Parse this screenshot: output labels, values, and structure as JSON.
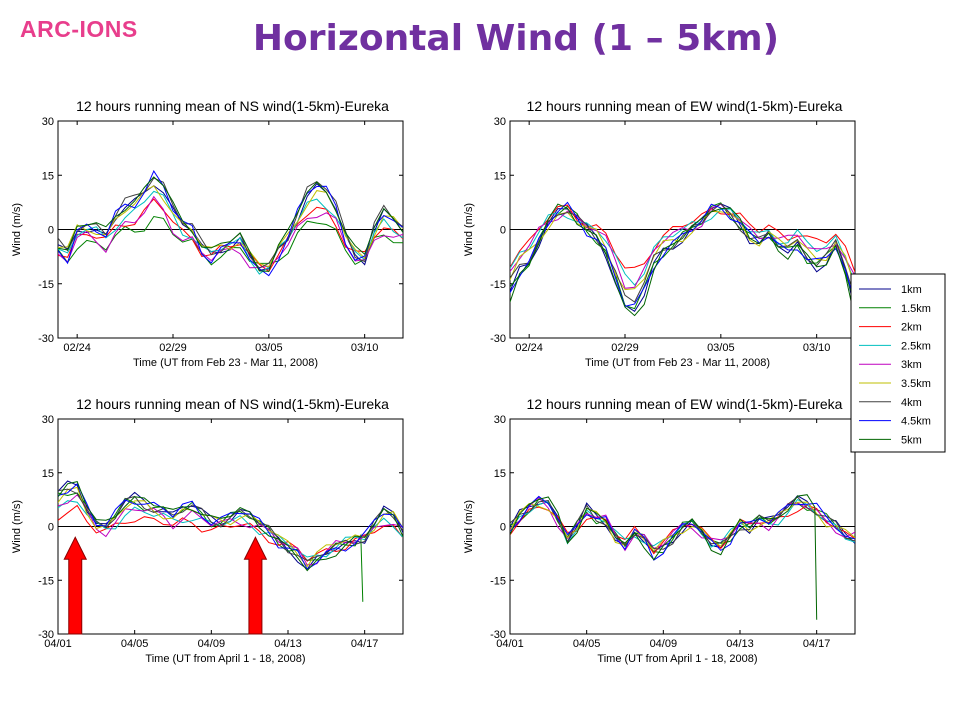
{
  "header": {
    "logo": "ARC-IONS",
    "title": "Horizontal Wind (1 – 5km)"
  },
  "colors": {
    "title": "#7030a0",
    "logo": "#e83e8c",
    "arrow": "#ff0000"
  },
  "legend": {
    "entries": [
      "1km",
      "1.5km",
      "2km",
      "2.5km",
      "3km",
      "3.5km",
      "4km",
      "4.5km",
      "5km"
    ],
    "colors": [
      "#00008b",
      "#008000",
      "#ff0000",
      "#00bfbf",
      "#bf00bf",
      "#bfbf00",
      "#404040",
      "#0000ff",
      "#006400"
    ]
  },
  "chart_data": [
    {
      "type": "line",
      "title": "12 hours running mean of NS wind(1-5km)-Eureka",
      "xlabel": "Time (UT from Feb 23 - Mar 11, 2008)",
      "ylabel": "Wind (m/s)",
      "xlim": [
        0,
        18
      ],
      "ylim": [
        -30,
        30
      ],
      "yticks": [
        30,
        15,
        0,
        -15,
        -30
      ],
      "xticks": [
        {
          "x": 1,
          "label": "02/24"
        },
        {
          "x": 6,
          "label": "02/29"
        },
        {
          "x": 11,
          "label": "03/05"
        },
        {
          "x": 16,
          "label": "03/10"
        }
      ],
      "grid": false,
      "legend_position": "right",
      "base": {
        "x": [
          0,
          0.5,
          1,
          1.5,
          2,
          2.5,
          3,
          3.5,
          4,
          4.5,
          5,
          5.5,
          6,
          6.5,
          7,
          7.5,
          8,
          8.5,
          9,
          9.5,
          10,
          10.5,
          11,
          11.5,
          12,
          12.5,
          13,
          13.5,
          14,
          14.5,
          15,
          15.5,
          16,
          16.5,
          17,
          17.5,
          18
        ],
        "y": [
          -5,
          -7,
          0,
          1,
          0,
          -2,
          3,
          6,
          7,
          10,
          14,
          11,
          5,
          1,
          0,
          -5,
          -7,
          -5,
          -4,
          -3,
          -8,
          -11,
          -11,
          -6,
          -2,
          4,
          9,
          11,
          10,
          6,
          -2,
          -7,
          -8,
          0,
          4,
          2,
          0
        ]
      },
      "amplitudes": [
        1.0,
        0.55,
        0.7,
        0.85,
        0.75,
        0.9,
        1.05,
        1.1,
        1.0
      ],
      "offsets": [
        0,
        -4,
        -2,
        -1,
        -3,
        0,
        1,
        0,
        1
      ]
    },
    {
      "type": "line",
      "title": "12 hours running mean of EW wind(1-5km)-Eureka",
      "xlabel": "Time (UT from Feb 23 - Mar 11, 2008)",
      "ylabel": "Wind (m/s)",
      "xlim": [
        0,
        18
      ],
      "ylim": [
        -30,
        30
      ],
      "yticks": [
        30,
        15,
        0,
        -15,
        -30
      ],
      "xticks": [
        {
          "x": 1,
          "label": "02/24"
        },
        {
          "x": 6,
          "label": "02/29"
        },
        {
          "x": 11,
          "label": "03/05"
        },
        {
          "x": 16,
          "label": "03/10"
        }
      ],
      "grid": false,
      "base": {
        "x": [
          0,
          0.5,
          1,
          1.5,
          2,
          2.5,
          3,
          3.5,
          4,
          4.5,
          5,
          5.5,
          6,
          6.5,
          7,
          7.5,
          8,
          8.5,
          9,
          9.5,
          10,
          10.5,
          11,
          11.5,
          12,
          12.5,
          13,
          13.5,
          14,
          14.5,
          15,
          15.5,
          16,
          16.5,
          17,
          17.5,
          18
        ],
        "y": [
          -18,
          -12,
          -9,
          -3,
          2,
          5,
          6,
          3,
          0,
          -2,
          -6,
          -14,
          -22,
          -23,
          -18,
          -10,
          -6,
          -4,
          -2,
          0,
          2,
          6,
          7,
          5,
          2,
          -2,
          -4,
          -2,
          -5,
          -6,
          -4,
          -8,
          -10,
          -9,
          -5,
          -12,
          -22
        ]
      },
      "amplitudes": [
        1.0,
        0.95,
        0.6,
        0.65,
        0.7,
        0.75,
        0.85,
        0.95,
        1.05
      ],
      "offsets": [
        0,
        0,
        2,
        1,
        1,
        0,
        0,
        0,
        0
      ]
    },
    {
      "type": "line",
      "title": "12 hours running mean of NS wind(1-5km)-Eureka",
      "xlabel": "Time (UT from April 1 - 18, 2008)",
      "ylabel": "Wind (m/s)",
      "xlim": [
        0,
        18
      ],
      "ylim": [
        -30,
        30
      ],
      "yticks": [
        30,
        15,
        0,
        -15,
        -30
      ],
      "xticks": [
        {
          "x": 0,
          "label": "04/01"
        },
        {
          "x": 4,
          "label": "04/05"
        },
        {
          "x": 8,
          "label": "04/09"
        },
        {
          "x": 12,
          "label": "04/13"
        },
        {
          "x": 16,
          "label": "04/17"
        }
      ],
      "grid": false,
      "base": {
        "x": [
          0,
          0.5,
          1,
          1.5,
          2,
          2.5,
          3,
          3.5,
          4,
          4.5,
          5,
          5.5,
          6,
          6.5,
          7,
          7.5,
          8,
          8.5,
          9,
          9.5,
          10,
          10.5,
          11,
          11.5,
          12,
          12.5,
          13,
          13.5,
          14,
          14.5,
          15,
          15.5,
          16,
          16.5,
          17,
          17.5,
          18
        ],
        "y": [
          9,
          11,
          12,
          6,
          1,
          0,
          3,
          7,
          8,
          7,
          6,
          5,
          3,
          5,
          6,
          4,
          2,
          2,
          3,
          4,
          3,
          1,
          -1,
          -4,
          -6,
          -8,
          -12,
          -10,
          -8,
          -6,
          -5,
          -4,
          -3,
          1,
          4,
          3,
          -1
        ]
      },
      "amplitudes": [
        1.0,
        0.9,
        0.6,
        0.7,
        0.75,
        0.8,
        0.9,
        1.0,
        1.05
      ],
      "offsets": [
        0,
        0,
        -2,
        -1,
        -1,
        0,
        0,
        0,
        0
      ],
      "spike": {
        "series": 1,
        "x": 15.9,
        "y": -21
      },
      "arrows": [
        {
          "x": 0.9,
          "from_y": -30,
          "to_y": -3
        },
        {
          "x": 10.3,
          "from_y": -30,
          "to_y": -3
        }
      ]
    },
    {
      "type": "line",
      "title": "12 hours running mean of EW wind(1-5km)-Eureka",
      "xlabel": "Time (UT from April 1 - 18, 2008)",
      "ylabel": "Wind (m/s)",
      "xlim": [
        0,
        18
      ],
      "ylim": [
        -30,
        30
      ],
      "yticks": [
        30,
        15,
        0,
        -15,
        -30
      ],
      "xticks": [
        {
          "x": 0,
          "label": "04/01"
        },
        {
          "x": 4,
          "label": "04/05"
        },
        {
          "x": 8,
          "label": "04/09"
        },
        {
          "x": 12,
          "label": "04/13"
        },
        {
          "x": 16,
          "label": "04/17"
        }
      ],
      "grid": false,
      "base": {
        "x": [
          0,
          0.5,
          1,
          1.5,
          2,
          2.5,
          3,
          3.5,
          4,
          4.5,
          5,
          5.5,
          6,
          6.5,
          7,
          7.5,
          8,
          8.5,
          9,
          9.5,
          10,
          10.5,
          11,
          11.5,
          12,
          12.5,
          13,
          13.5,
          14,
          14.5,
          15,
          15.5,
          16,
          16.5,
          17,
          17.5,
          18
        ],
        "y": [
          -1,
          3,
          6,
          8,
          7,
          2,
          -4,
          0,
          5,
          3,
          2,
          -3,
          -6,
          -2,
          -4,
          -8,
          -6,
          -3,
          0,
          1,
          -2,
          -5,
          -6,
          -3,
          1,
          0,
          2,
          1,
          3,
          6,
          8,
          7,
          5,
          2,
          0,
          -3,
          -4
        ]
      },
      "amplitudes": [
        1.0,
        0.9,
        0.7,
        0.75,
        0.8,
        0.85,
        0.95,
        1.0,
        1.05
      ],
      "offsets": [
        0,
        0,
        0,
        0,
        0,
        0,
        0,
        0,
        0
      ],
      "spike": {
        "series": 8,
        "x": 16.0,
        "y": -26
      }
    }
  ]
}
